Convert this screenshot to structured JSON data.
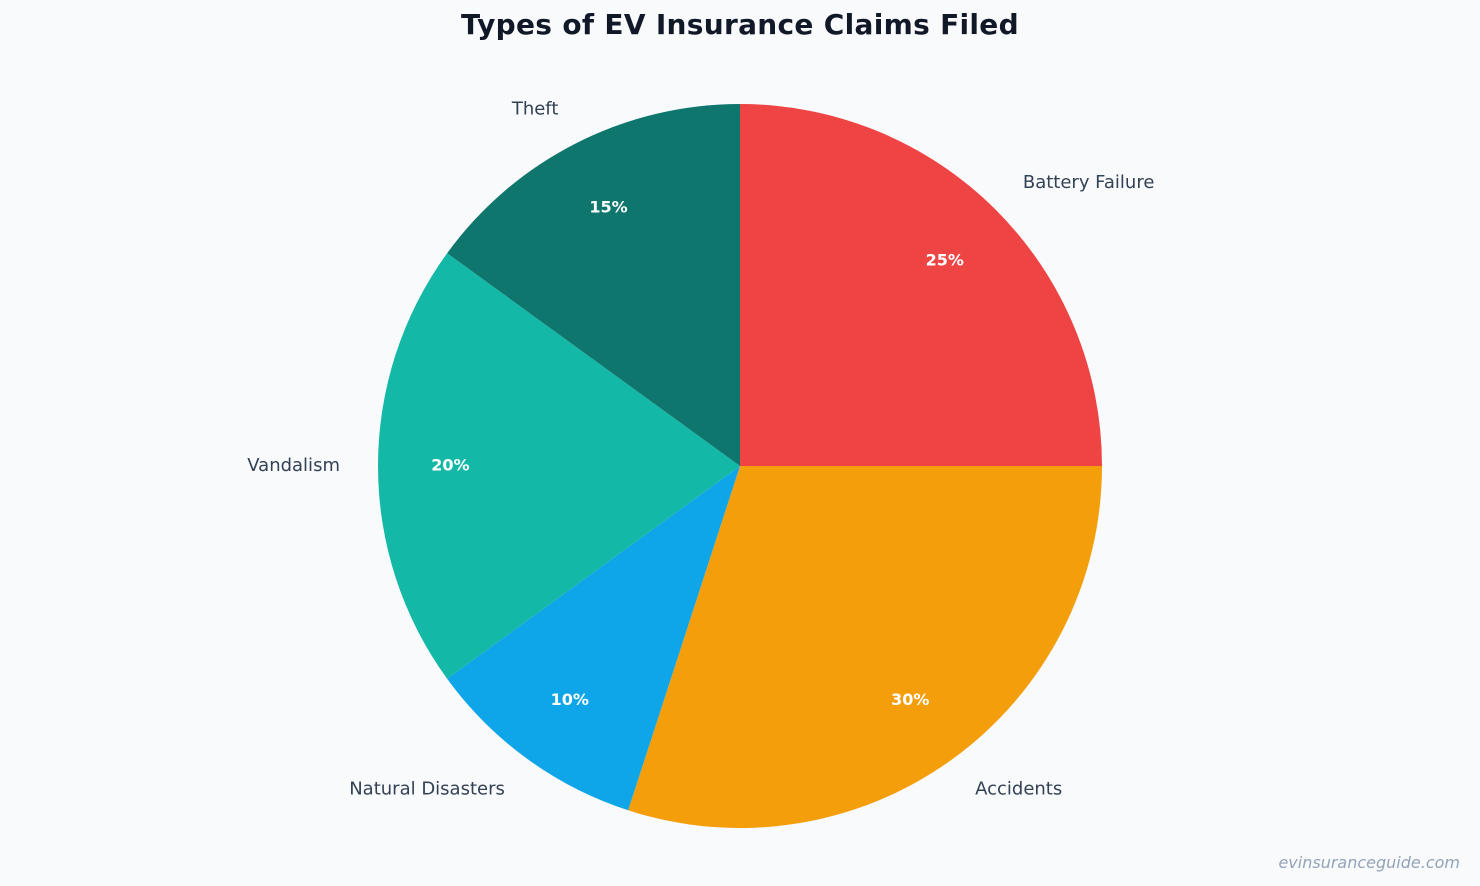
{
  "chart_data": {
    "type": "pie",
    "title": "Types of EV Insurance Claims Filed",
    "categories": [
      "Battery Failure",
      "Accidents",
      "Natural Disasters",
      "Vandalism",
      "Theft"
    ],
    "values": [
      25,
      30,
      10,
      20,
      15
    ],
    "value_labels": [
      "25%",
      "30%",
      "10%",
      "20%",
      "15%"
    ],
    "colors": [
      "#ef4444",
      "#f59e0b",
      "#0ea5e9",
      "#14b8a6",
      "#0f766e"
    ],
    "start_angle": "12 o'clock",
    "direction": "clockwise",
    "legend": "none"
  },
  "watermark": "evinsuranceguide.com"
}
